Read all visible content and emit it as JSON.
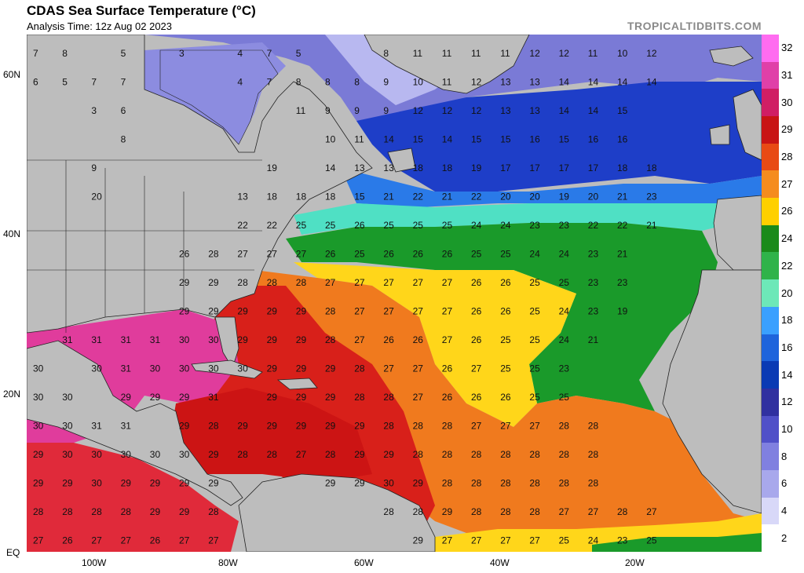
{
  "header": {
    "title": "CDAS Sea Surface Temperature (°C)",
    "analysis_time": "Analysis Time: 12z Aug 02 2023",
    "credit": "TROPICALTIDBITS.COM"
  },
  "axes": {
    "lat_labels": [
      "60N",
      "40N",
      "20N",
      "EQ"
    ],
    "lon_labels": [
      "100W",
      "80W",
      "60W",
      "40W",
      "20W"
    ]
  },
  "colorbar": {
    "labels": [
      "32",
      "31",
      "30",
      "29",
      "28",
      "27",
      "26",
      "24",
      "22",
      "20",
      "18",
      "16",
      "14",
      "12",
      "10",
      "8",
      "6",
      "4",
      "2"
    ],
    "colors": [
      "#ff6cf0",
      "#e040a8",
      "#d01e64",
      "#c81414",
      "#e84a14",
      "#f58c1e",
      "#ffd000",
      "#1a8a1a",
      "#2fb34a",
      "#6de8b8",
      "#3aa0ff",
      "#1e64dc",
      "#0a3ab4",
      "#3030a0",
      "#5050c8",
      "#8080e0",
      "#a8a8ec",
      "#d8d8f8",
      "#ffffff"
    ]
  },
  "map": {
    "grid_values": [
      [
        "7",
        "8",
        "",
        "5",
        "",
        "3",
        "",
        "4",
        "7",
        "5",
        "",
        "",
        "8",
        "11",
        "11",
        "11",
        "11",
        "12",
        "12",
        "11",
        "10",
        "12"
      ],
      [
        "6",
        "5",
        "7",
        "7",
        "",
        "",
        "",
        "4",
        "7",
        "8",
        "8",
        "8",
        "9",
        "10",
        "11",
        "12",
        "13",
        "13",
        "14",
        "14",
        "14",
        "14"
      ],
      [
        "",
        "",
        "3",
        "6",
        "",
        "",
        "",
        "",
        "",
        "11",
        "9",
        "9",
        "9",
        "12",
        "12",
        "12",
        "13",
        "13",
        "14",
        "14",
        "15",
        ""
      ],
      [
        "",
        "",
        "",
        "8",
        "",
        "",
        "",
        "",
        "",
        "",
        "10",
        "11",
        "14",
        "15",
        "14",
        "15",
        "15",
        "16",
        "15",
        "16",
        "16",
        ""
      ],
      [
        "",
        "",
        "9",
        "",
        "",
        "",
        "",
        "",
        "19",
        "",
        "14",
        "13",
        "13",
        "18",
        "18",
        "19",
        "17",
        "17",
        "17",
        "17",
        "18",
        "18"
      ],
      [
        "",
        "",
        "20",
        "",
        "",
        "",
        "",
        "13",
        "18",
        "18",
        "18",
        "15",
        "21",
        "22",
        "21",
        "22",
        "20",
        "20",
        "19",
        "20",
        "21",
        "23"
      ],
      [
        "",
        "",
        "",
        "",
        "",
        "",
        "",
        "22",
        "22",
        "25",
        "25",
        "26",
        "25",
        "25",
        "25",
        "24",
        "24",
        "23",
        "23",
        "22",
        "22",
        "21"
      ],
      [
        "",
        "",
        "",
        "",
        "",
        "26",
        "28",
        "27",
        "27",
        "27",
        "26",
        "25",
        "26",
        "26",
        "26",
        "25",
        "25",
        "24",
        "24",
        "23",
        "21",
        ""
      ],
      [
        "",
        "",
        "",
        "",
        "",
        "29",
        "29",
        "28",
        "28",
        "28",
        "27",
        "27",
        "27",
        "27",
        "27",
        "26",
        "26",
        "25",
        "25",
        "23",
        "23",
        ""
      ],
      [
        "",
        "",
        "",
        "",
        "",
        "29",
        "29",
        "29",
        "29",
        "29",
        "28",
        "27",
        "27",
        "27",
        "27",
        "26",
        "26",
        "25",
        "24",
        "23",
        "19",
        ""
      ],
      [
        "",
        "31",
        "31",
        "31",
        "31",
        "30",
        "30",
        "29",
        "29",
        "29",
        "28",
        "27",
        "26",
        "26",
        "27",
        "26",
        "25",
        "25",
        "24",
        "21",
        "",
        ""
      ],
      [
        "30",
        "",
        "30",
        "31",
        "30",
        "30",
        "30",
        "30",
        "29",
        "29",
        "29",
        "28",
        "27",
        "27",
        "26",
        "27",
        "25",
        "25",
        "23",
        "",
        "",
        ""
      ],
      [
        "30",
        "30",
        "",
        "29",
        "29",
        "29",
        "31",
        "",
        "29",
        "29",
        "29",
        "28",
        "28",
        "27",
        "26",
        "26",
        "26",
        "25",
        "25",
        "",
        "",
        ""
      ],
      [
        "30",
        "30",
        "31",
        "31",
        "",
        "29",
        "28",
        "29",
        "29",
        "29",
        "29",
        "29",
        "28",
        "28",
        "28",
        "27",
        "27",
        "27",
        "28",
        "28",
        "",
        ""
      ],
      [
        "29",
        "30",
        "30",
        "30",
        "30",
        "30",
        "29",
        "28",
        "28",
        "27",
        "28",
        "29",
        "29",
        "28",
        "28",
        "28",
        "28",
        "28",
        "28",
        "28",
        "",
        ""
      ],
      [
        "29",
        "29",
        "30",
        "29",
        "29",
        "29",
        "29",
        "",
        "",
        "",
        "29",
        "29",
        "30",
        "29",
        "28",
        "28",
        "28",
        "28",
        "28",
        "28",
        "",
        ""
      ],
      [
        "28",
        "28",
        "28",
        "28",
        "29",
        "29",
        "28",
        "",
        "",
        "",
        "",
        "",
        "28",
        "28",
        "29",
        "28",
        "28",
        "28",
        "27",
        "27",
        "28",
        "27"
      ],
      [
        "27",
        "26",
        "27",
        "27",
        "26",
        "27",
        "27",
        "",
        "",
        "",
        "",
        "",
        "",
        "29",
        "27",
        "27",
        "27",
        "27",
        "25",
        "24",
        "23",
        "25"
      ]
    ],
    "land_color": "#bdbdbd",
    "border_color": "#222222"
  }
}
